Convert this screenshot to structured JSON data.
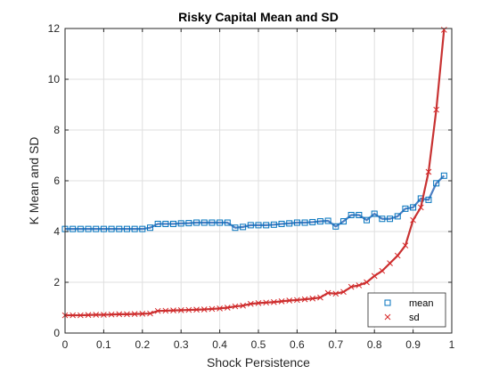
{
  "chart_data": {
    "type": "line",
    "title": "Risky Capital Mean and SD",
    "xlabel": "Shock Persistence",
    "ylabel": "K Mean and SD",
    "xlim": [
      0,
      1
    ],
    "ylim": [
      0,
      12
    ],
    "xticks": [
      0,
      0.1,
      0.2,
      0.3,
      0.4,
      0.5,
      0.6,
      0.7,
      0.8,
      0.9,
      1
    ],
    "xtick_labels": [
      "0",
      "0.1",
      "0.2",
      "0.3",
      "0.4",
      "0.5",
      "0.6",
      "0.7",
      "0.8",
      "0.9",
      "1"
    ],
    "yticks": [
      0,
      2,
      4,
      6,
      8,
      10,
      12
    ],
    "ytick_labels": [
      "0",
      "2",
      "4",
      "6",
      "8",
      "10",
      "12"
    ],
    "grid": true,
    "legend_position": "bottom-right",
    "colors": {
      "mean": "#0072BD",
      "sd": "#D62728",
      "mean_line": "#4D7FC2",
      "sd_line": "#C83232"
    },
    "series": [
      {
        "name": "mean",
        "marker": "square",
        "x": [
          0,
          0.02,
          0.04,
          0.06,
          0.08,
          0.1,
          0.12,
          0.14,
          0.16,
          0.18,
          0.2,
          0.22,
          0.24,
          0.26,
          0.28,
          0.3,
          0.32,
          0.34,
          0.36,
          0.38,
          0.4,
          0.42,
          0.44,
          0.46,
          0.48,
          0.5,
          0.52,
          0.54,
          0.56,
          0.58,
          0.6,
          0.62,
          0.64,
          0.66,
          0.68,
          0.7,
          0.72,
          0.74,
          0.76,
          0.78,
          0.8,
          0.82,
          0.84,
          0.86,
          0.88,
          0.9,
          0.92,
          0.94,
          0.96,
          0.98
        ],
        "y": [
          4.1,
          4.1,
          4.1,
          4.1,
          4.1,
          4.1,
          4.1,
          4.1,
          4.1,
          4.1,
          4.1,
          4.15,
          4.3,
          4.3,
          4.3,
          4.32,
          4.33,
          4.35,
          4.35,
          4.35,
          4.35,
          4.35,
          4.15,
          4.18,
          4.25,
          4.25,
          4.25,
          4.27,
          4.3,
          4.32,
          4.35,
          4.35,
          4.37,
          4.4,
          4.42,
          4.2,
          4.4,
          4.65,
          4.65,
          4.45,
          4.7,
          4.5,
          4.5,
          4.6,
          4.9,
          4.95,
          5.3,
          5.25,
          5.9,
          6.2
        ]
      },
      {
        "name": "sd",
        "marker": "x",
        "x": [
          0,
          0.02,
          0.04,
          0.06,
          0.08,
          0.1,
          0.12,
          0.14,
          0.16,
          0.18,
          0.2,
          0.22,
          0.24,
          0.26,
          0.28,
          0.3,
          0.32,
          0.34,
          0.36,
          0.38,
          0.4,
          0.42,
          0.44,
          0.46,
          0.48,
          0.5,
          0.52,
          0.54,
          0.56,
          0.58,
          0.6,
          0.62,
          0.64,
          0.66,
          0.68,
          0.7,
          0.72,
          0.74,
          0.76,
          0.78,
          0.8,
          0.82,
          0.84,
          0.86,
          0.88,
          0.9,
          0.92,
          0.94,
          0.96,
          0.98
        ],
        "y": [
          0.7,
          0.7,
          0.7,
          0.71,
          0.72,
          0.72,
          0.73,
          0.74,
          0.74,
          0.75,
          0.76,
          0.77,
          0.87,
          0.88,
          0.89,
          0.9,
          0.91,
          0.92,
          0.93,
          0.95,
          0.97,
          1.0,
          1.05,
          1.08,
          1.15,
          1.18,
          1.2,
          1.22,
          1.25,
          1.28,
          1.3,
          1.33,
          1.36,
          1.4,
          1.58,
          1.55,
          1.62,
          1.82,
          1.88,
          2.0,
          2.25,
          2.45,
          2.75,
          3.05,
          3.45,
          4.45,
          4.95,
          6.35,
          8.8,
          11.95
        ]
      }
    ]
  }
}
